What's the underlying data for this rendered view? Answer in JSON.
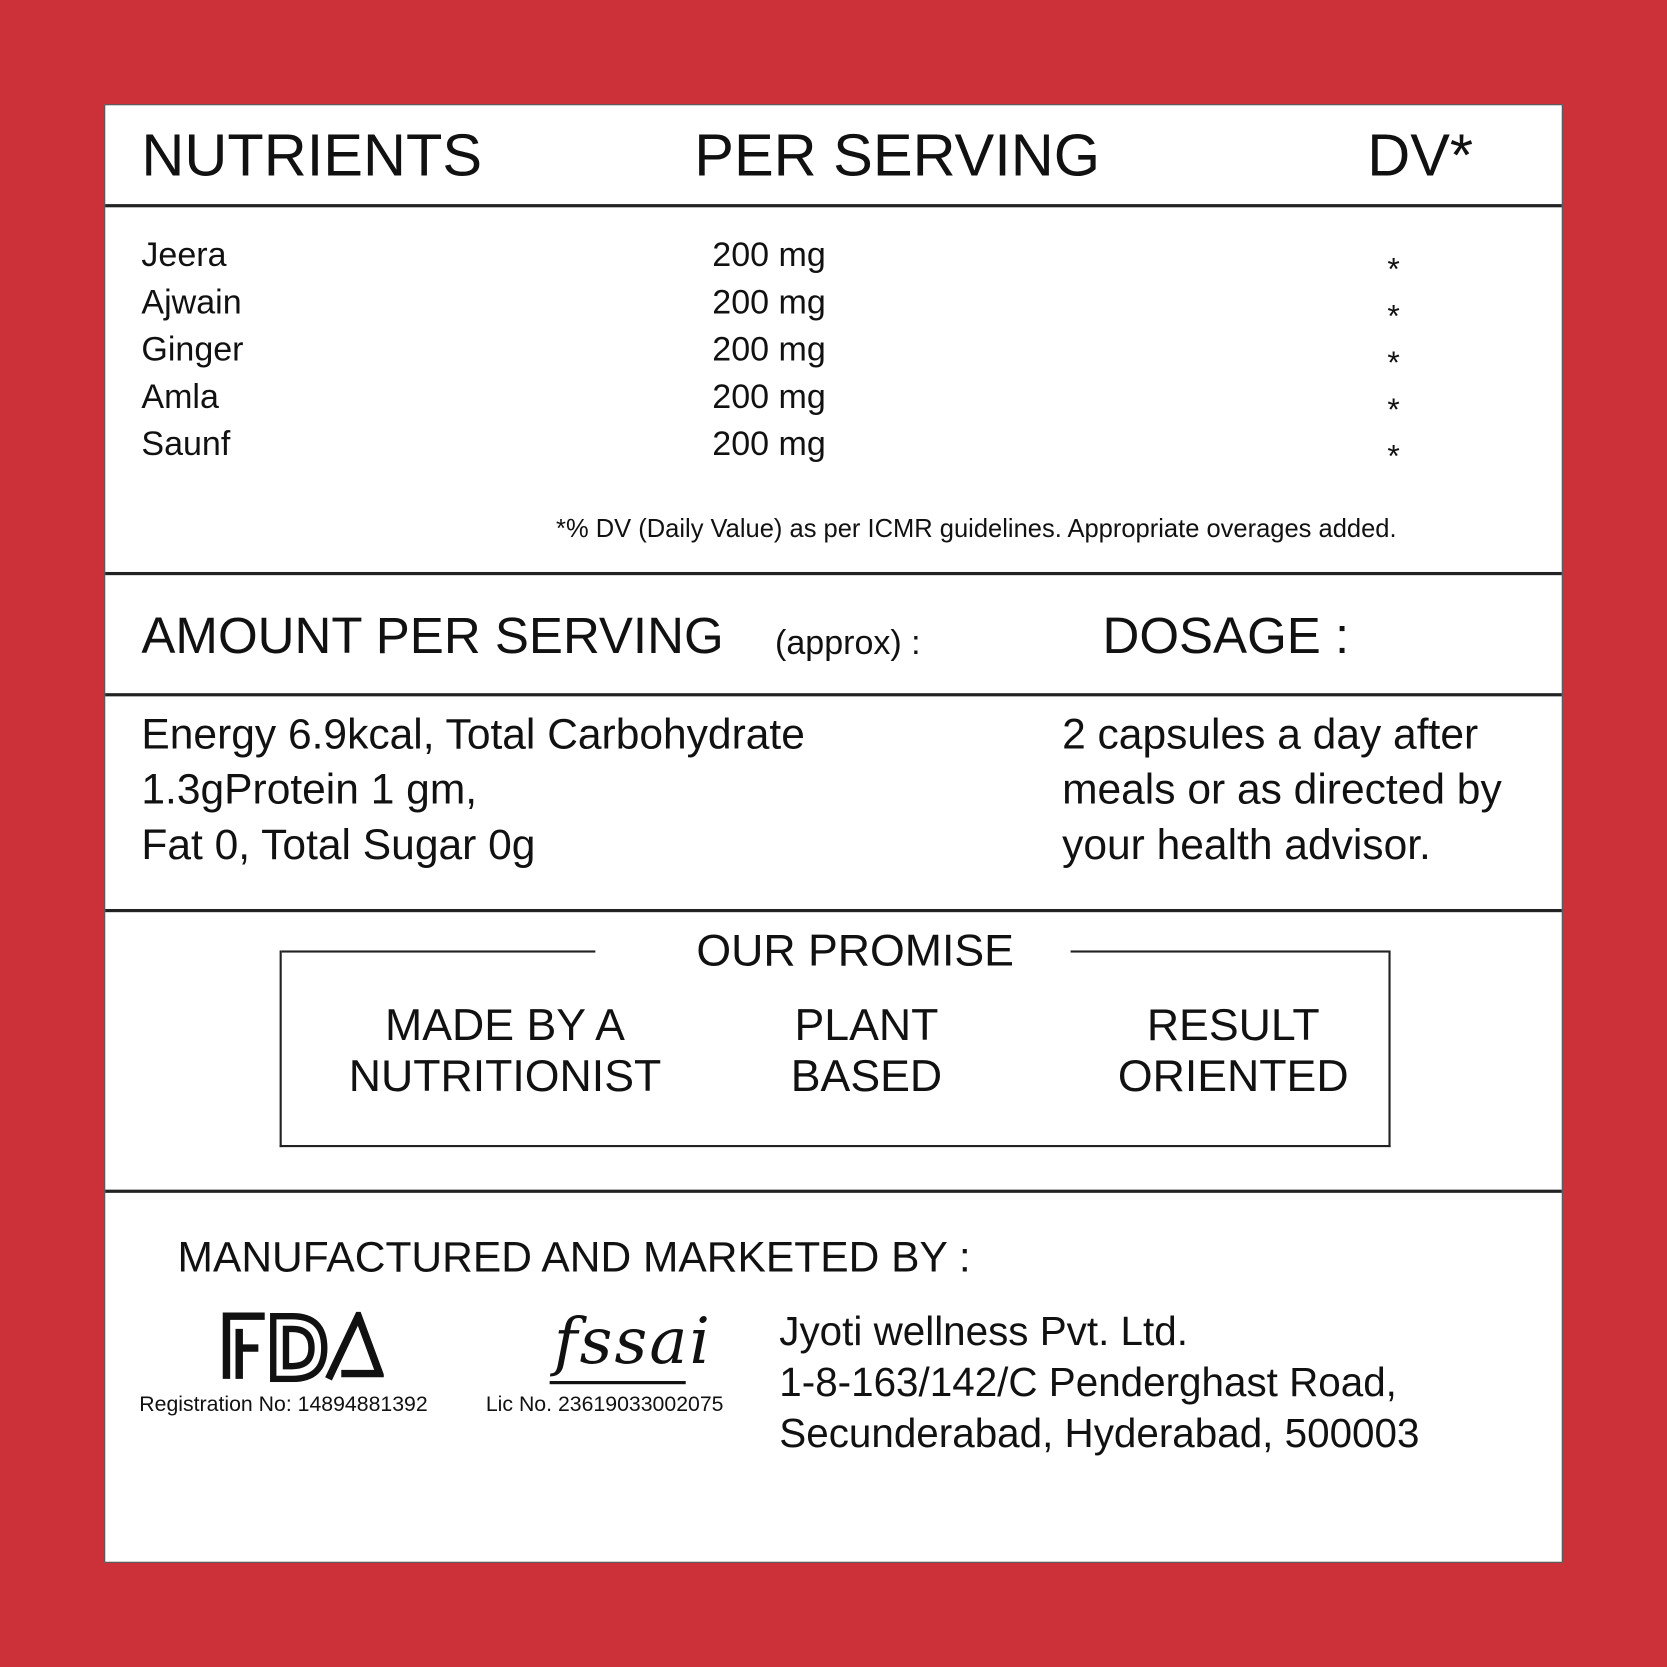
{
  "header": {
    "nutrients": "NUTRIENTS",
    "per_serving": "PER SERVING",
    "dv": "DV*"
  },
  "nutrients": [
    {
      "name": "Jeera",
      "amount": "200 mg",
      "dv": "*"
    },
    {
      "name": "Ajwain",
      "amount": "200 mg",
      "dv": "*"
    },
    {
      "name": "Ginger",
      "amount": "200 mg",
      "dv": "*"
    },
    {
      "name": "Amla",
      "amount": "200 mg",
      "dv": "*"
    },
    {
      "name": "Saunf",
      "amount": "200 mg",
      "dv": "*"
    }
  ],
  "footnote": "*% DV (Daily Value) as per ICMR guidelines. Appropriate overages added.",
  "amount": {
    "title": "AMOUNT PER SERVING",
    "approx": "(approx) :",
    "text": "Energy 6.9kcal, Total Carbohydrate\n1.3gProtein 1 gm,\nFat 0, Total Sugar 0g"
  },
  "dosage": {
    "title": "DOSAGE :",
    "text": "2 capsules a day after\nmeals or as directed by\nyour health advisor."
  },
  "promise": {
    "title": "OUR PROMISE",
    "items": [
      "MADE BY A\nNUTRITIONIST",
      "PLANT\nBASED",
      "RESULT\nORIENTED"
    ]
  },
  "manufacturer": {
    "title": "MANUFACTURED AND MARKETED BY :",
    "fda_logo": "FDA",
    "fda_reg": "Registration No: 14894881392",
    "fssai_logo": "fssai",
    "fssai_lic": "Lic No. 23619033002075",
    "address": [
      "Jyoti wellness Pvt. Ltd.",
      "1-8-163/142/C Penderghast Road,",
      "Secunderabad, Hyderabad, 500003"
    ]
  },
  "colors": {
    "background": "#cc3039",
    "panel": "#ffffff",
    "text": "#111111"
  }
}
